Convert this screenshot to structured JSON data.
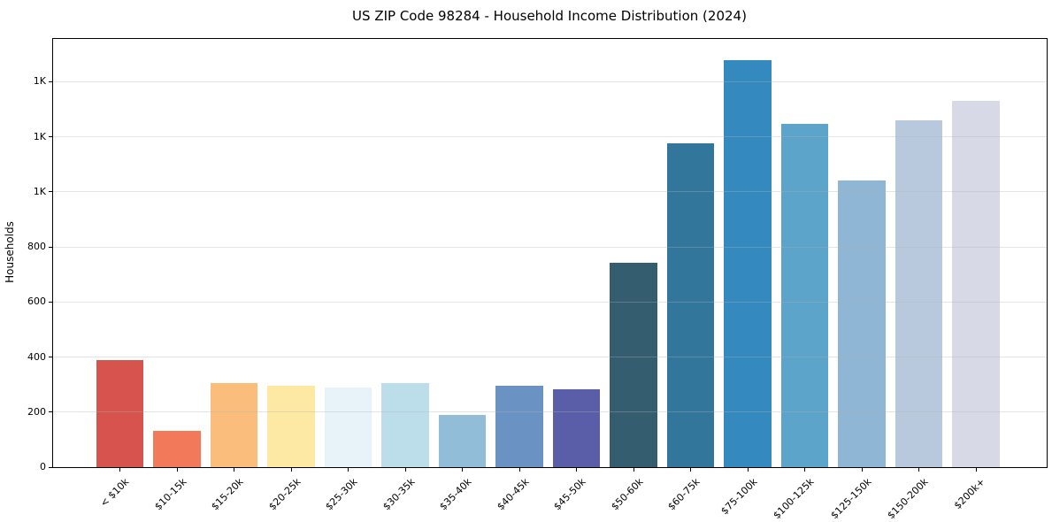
{
  "chart_data": {
    "type": "bar",
    "title": "US ZIP Code 98284 - Household Income Distribution (2024)",
    "xlabel": "",
    "ylabel": "Households",
    "categories": [
      "< $10k",
      "$10-15k",
      "$15-20k",
      "$20-25k",
      "$25-30k",
      "$30-35k",
      "$35-40k",
      "$40-45k",
      "$45-50k",
      "$50-60k",
      "$60-75k",
      "$75-100k",
      "$100-125k",
      "$125-150k",
      "$150-200k",
      "$200k+"
    ],
    "values": [
      389,
      133,
      305,
      296,
      288,
      305,
      191,
      297,
      284,
      742,
      1176,
      1477,
      1248,
      1041,
      1258,
      1329
    ],
    "bar_colors": [
      "#d6534e",
      "#f3795b",
      "#fabd7b",
      "#fde9a3",
      "#e7f3f8",
      "#bcdeea",
      "#92bdd8",
      "#6a93c4",
      "#5a5ea9",
      "#355d70",
      "#33769c",
      "#348abf",
      "#5ca4c9",
      "#8fb6d4",
      "#b8c9de",
      "#d7d9e6"
    ],
    "ylim": [
      0,
      1555
    ],
    "yticks": [
      {
        "value": 0,
        "label": "0"
      },
      {
        "value": 200,
        "label": "200"
      },
      {
        "value": 400,
        "label": "400"
      },
      {
        "value": 600,
        "label": "600"
      },
      {
        "value": 800,
        "label": "800"
      },
      {
        "value": 1000,
        "label": "1K"
      },
      {
        "value": 1200,
        "label": "1K"
      },
      {
        "value": 1400,
        "label": "1K"
      }
    ],
    "grid": "horizontal-light-gray-over-bars",
    "legend": "none",
    "x_tick_rotation_deg": 45,
    "background": "#ffffff"
  }
}
